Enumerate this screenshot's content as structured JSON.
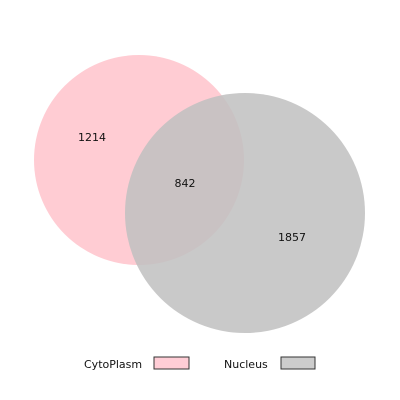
{
  "sets": [
    {
      "name": "CytoPlasm",
      "only_count": "1214",
      "color": "#ffb6c1"
    },
    {
      "name": "Nucleus",
      "only_count": "1857",
      "color": "#c0c0c0"
    }
  ],
  "intersection": {
    "count": "842"
  },
  "legend": {
    "items": [
      {
        "label": "CytoPlasm",
        "swatch_color": "#ffcdd6"
      },
      {
        "label": "Nucleus",
        "swatch_color": "#cccccc"
      }
    ]
  }
}
